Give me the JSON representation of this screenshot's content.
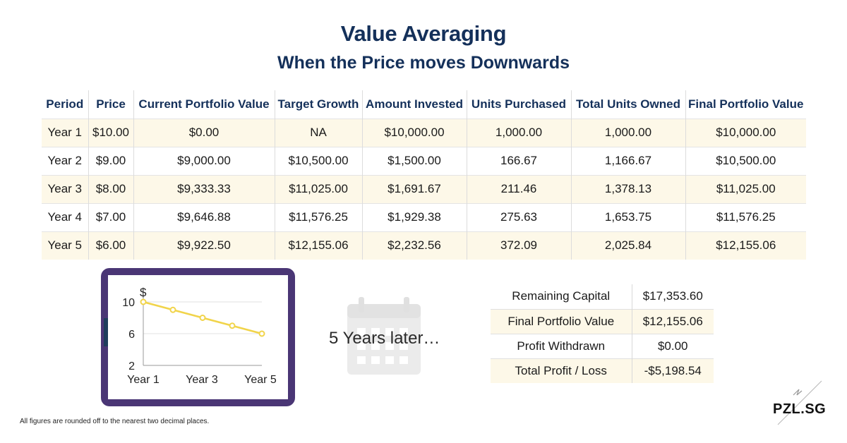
{
  "header": {
    "title": "Value Averaging",
    "subtitle": "When the Price moves Downwards"
  },
  "table": {
    "columns": [
      "Period",
      "Price",
      "Current Portfolio Value",
      "Target Growth",
      "Amount Invested",
      "Units Purchased",
      "Total Units Owned",
      "Final Portfolio Value"
    ],
    "rows": [
      [
        "Year 1",
        "$10.00",
        "$0.00",
        "NA",
        "$10,000.00",
        "1,000.00",
        "1,000.00",
        "$10,000.00"
      ],
      [
        "Year 2",
        "$9.00",
        "$9,000.00",
        "$10,500.00",
        "$1,500.00",
        "166.67",
        "1,166.67",
        "$10,500.00"
      ],
      [
        "Year 3",
        "$8.00",
        "$9,333.33",
        "$11,025.00",
        "$1,691.67",
        "211.46",
        "1,378.13",
        "$11,025.00"
      ],
      [
        "Year 4",
        "$7.00",
        "$9,646.88",
        "$11,576.25",
        "$1,929.38",
        "275.63",
        "1,653.75",
        "$11,576.25"
      ],
      [
        "Year 5",
        "$6.00",
        "$9,922.50",
        "$12,155.06",
        "$2,232.56",
        "372.09",
        "2,025.84",
        "$12,155.06"
      ]
    ]
  },
  "chart": {
    "unit": "$",
    "y_ticks": [
      "10",
      "6",
      "2"
    ],
    "x_ticks": [
      "Year 1",
      "Year 3",
      "Year 5"
    ],
    "frame_color": "#4a3675",
    "line_color": "#f1d44a"
  },
  "chart_data": {
    "type": "line",
    "x": [
      1,
      2,
      3,
      4,
      5
    ],
    "values": [
      10,
      9,
      8,
      7,
      6
    ],
    "ylabel": "$",
    "ylim": [
      2,
      10
    ],
    "xlim": [
      1,
      5
    ],
    "grid": true
  },
  "later": {
    "icon": "calendar-icon",
    "text": "5 Years later…"
  },
  "summary": {
    "rows": [
      {
        "label": "Remaining Capital",
        "value": "$17,353.60"
      },
      {
        "label": "Final Portfolio Value",
        "value": "$12,155.06"
      },
      {
        "label": "Profit Withdrawn",
        "value": "$0.00"
      },
      {
        "label": "Total Profit / Loss",
        "value": "-$5,198.54"
      }
    ]
  },
  "footnote": "All figures are rounded off to the nearest two decimal places.",
  "brand": {
    "logo": "PZL.SG"
  },
  "colors": {
    "heading": "#14305a",
    "stripe": "#fdf8e8"
  }
}
